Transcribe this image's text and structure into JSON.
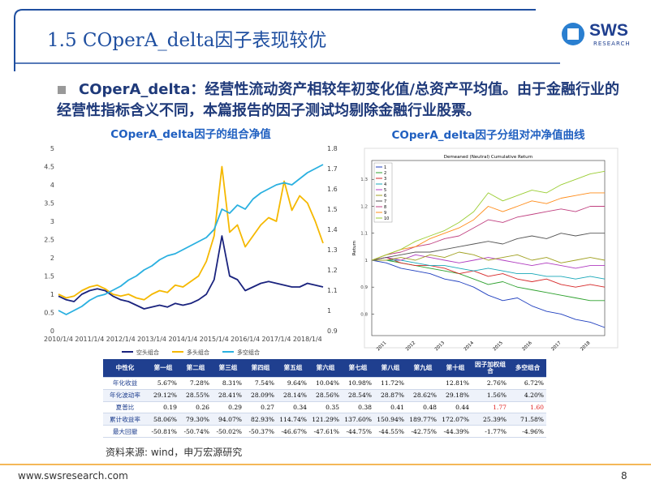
{
  "header": {
    "title": "1.5 COperA_delta因子表现较优",
    "logo": "SWS",
    "logo_sub": "RESEARCH"
  },
  "bullet": "COperA_delta：经营性流动资产相较年初变化值/总资产平均值。由于金融行业的经营性指标含义不同，本篇报告的因子测试均剔除金融行业股票。",
  "chart_data": [
    {
      "type": "line",
      "title": "COperA_delta因子的组合净值",
      "categories": [
        "2010/1/4",
        null,
        null,
        null,
        "2011/1/4",
        null,
        null,
        null,
        "2012/1/4",
        null,
        null,
        null,
        "2013/1/4",
        null,
        null,
        null,
        "2014/1/4",
        null,
        null,
        null,
        "2015/1/4",
        null,
        null,
        null,
        "2016/1/4",
        null,
        null,
        null,
        "2017/1/4",
        null,
        null,
        null,
        "2018/1/4",
        null,
        null
      ],
      "series": [
        {
          "name": "空头组合",
          "color": "#1a237e",
          "values": [
            0.95,
            0.85,
            0.8,
            1.0,
            1.1,
            1.15,
            1.1,
            0.95,
            0.85,
            0.8,
            0.7,
            0.6,
            0.65,
            0.7,
            0.65,
            0.75,
            0.7,
            0.75,
            0.85,
            1.0,
            1.4,
            2.6,
            1.5,
            1.4,
            1.1,
            1.2,
            1.3,
            1.35,
            1.3,
            1.25,
            1.2,
            1.2,
            1.3,
            1.25,
            1.2
          ]
        },
        {
          "name": "多头组合",
          "color": "#f5b800",
          "values": [
            1.0,
            0.9,
            0.95,
            1.1,
            1.2,
            1.25,
            1.15,
            1.0,
            0.95,
            1.0,
            0.9,
            0.85,
            1.0,
            1.1,
            1.05,
            1.25,
            1.2,
            1.35,
            1.5,
            1.9,
            2.6,
            4.5,
            2.7,
            2.9,
            2.3,
            2.6,
            2.9,
            3.1,
            3.0,
            4.1,
            3.3,
            3.7,
            3.5,
            3.0,
            2.4
          ]
        },
        {
          "name": "多空组合",
          "color": "#2ab0e0",
          "axis": "y2",
          "values": [
            1.0,
            0.98,
            1.0,
            1.02,
            1.05,
            1.07,
            1.08,
            1.1,
            1.12,
            1.15,
            1.17,
            1.2,
            1.22,
            1.25,
            1.27,
            1.28,
            1.3,
            1.32,
            1.34,
            1.36,
            1.4,
            1.5,
            1.48,
            1.52,
            1.5,
            1.55,
            1.58,
            1.6,
            1.62,
            1.63,
            1.62,
            1.65,
            1.68,
            1.7,
            1.72
          ]
        }
      ],
      "ylim": [
        0,
        5
      ],
      "yticks": [
        0,
        0.5,
        1,
        1.5,
        2,
        2.5,
        3,
        3.5,
        4,
        4.5,
        5
      ],
      "y2lim": [
        0.9,
        1.8
      ],
      "y2ticks": [
        0.9,
        1,
        1.1,
        1.2,
        1.3,
        1.4,
        1.5,
        1.6,
        1.7,
        1.8
      ],
      "grid": false,
      "legend": "bottom"
    },
    {
      "type": "line",
      "title": "COperA_delta因子分组对冲净值曲线",
      "subtitle": "Demeaned (Neutral) Cumulative Return",
      "y_label": "Return",
      "categories": [
        null,
        "2011",
        null,
        "2012",
        null,
        "2013",
        null,
        "2014",
        null,
        "2015",
        null,
        "2016",
        null,
        "2017",
        null,
        "2018",
        null
      ],
      "series": [
        {
          "name": "1",
          "color": "#1f3fbf",
          "values": [
            1,
            0.99,
            0.97,
            0.96,
            0.95,
            0.93,
            0.92,
            0.9,
            0.87,
            0.85,
            0.86,
            0.83,
            0.81,
            0.8,
            0.78,
            0.77,
            0.75
          ]
        },
        {
          "name": "2",
          "color": "#2ca02c",
          "values": [
            1,
            1.0,
            0.99,
            0.98,
            0.97,
            0.96,
            0.95,
            0.93,
            0.91,
            0.92,
            0.9,
            0.89,
            0.88,
            0.87,
            0.86,
            0.85,
            0.85
          ]
        },
        {
          "name": "3",
          "color": "#d62728",
          "values": [
            1,
            1.01,
            0.99,
            0.98,
            0.98,
            0.97,
            0.95,
            0.96,
            0.94,
            0.95,
            0.93,
            0.92,
            0.93,
            0.91,
            0.9,
            0.91,
            0.9
          ]
        },
        {
          "name": "4",
          "color": "#17a7b8",
          "values": [
            1,
            1.0,
            1.0,
            0.99,
            0.98,
            0.98,
            0.97,
            0.96,
            0.97,
            0.96,
            0.95,
            0.95,
            0.94,
            0.94,
            0.93,
            0.94,
            0.93
          ]
        },
        {
          "name": "5",
          "color": "#b03cc0",
          "values": [
            1,
            1.01,
            1.0,
            1.02,
            1.01,
            1.0,
            0.99,
            1.0,
            1.01,
            1.0,
            0.99,
            0.98,
            0.99,
            0.98,
            0.97,
            0.98,
            0.98
          ]
        },
        {
          "name": "6",
          "color": "#a0a020",
          "values": [
            1,
            1.0,
            1.01,
            1.0,
            1.02,
            1.01,
            1.03,
            1.02,
            1.0,
            1.01,
            1.02,
            1.0,
            1.01,
            0.99,
            1.0,
            1.01,
            1.0
          ]
        },
        {
          "name": "7",
          "color": "#555555",
          "values": [
            1,
            1.01,
            1.02,
            1.03,
            1.03,
            1.04,
            1.05,
            1.06,
            1.07,
            1.06,
            1.08,
            1.09,
            1.08,
            1.1,
            1.09,
            1.1,
            1.1
          ]
        },
        {
          "name": "8",
          "color": "#c04080",
          "values": [
            1,
            1.02,
            1.03,
            1.05,
            1.06,
            1.08,
            1.09,
            1.12,
            1.15,
            1.14,
            1.16,
            1.17,
            1.18,
            1.19,
            1.18,
            1.2,
            1.2
          ]
        },
        {
          "name": "9",
          "color": "#ff8c1a",
          "values": [
            1,
            1.02,
            1.04,
            1.05,
            1.08,
            1.1,
            1.12,
            1.15,
            1.2,
            1.18,
            1.2,
            1.22,
            1.21,
            1.23,
            1.24,
            1.25,
            1.25
          ]
        },
        {
          "name": "10",
          "color": "#9acd32",
          "values": [
            1,
            1.02,
            1.04,
            1.07,
            1.09,
            1.11,
            1.14,
            1.18,
            1.25,
            1.22,
            1.24,
            1.26,
            1.25,
            1.28,
            1.3,
            1.32,
            1.33
          ]
        }
      ],
      "ylim": [
        0.72,
        1.37
      ],
      "yticks": [
        0.8,
        0.9,
        1,
        1.1,
        1.2,
        1.3
      ],
      "grid": false,
      "legend": "upper left"
    }
  ],
  "table": {
    "header": [
      "中性化",
      "第一组",
      "第二组",
      "第三组",
      "第四组",
      "第五组",
      "第六组",
      "第七组",
      "第八组",
      "第九组",
      "第十组",
      "因子加权组合",
      "多空组合"
    ],
    "rows": [
      {
        "label": "年化收益",
        "values": [
          "5.67%",
          "7.28%",
          "8.31%",
          "7.54%",
          "9.64%",
          "10.04%",
          "10.98%",
          "11.72%",
          null,
          "12.81%",
          "2.76%",
          "6.72%"
        ]
      },
      {
        "label": "年化波动率",
        "values": [
          "29.12%",
          "28.55%",
          "28.41%",
          "28.09%",
          "28.14%",
          "28.56%",
          "28.54%",
          "28.87%",
          "28.62%",
          "29.18%",
          "1.56%",
          "4.20%"
        ]
      },
      {
        "label": "夏普比",
        "values": [
          "0.19",
          "0.26",
          "0.29",
          "0.27",
          "0.34",
          "0.35",
          "0.38",
          "0.41",
          "0.48",
          "0.44",
          "1.77",
          "1.60"
        ]
      },
      {
        "label": "累计收益率",
        "values": [
          "58.06%",
          "79.30%",
          "94.07%",
          "82.93%",
          "114.74%",
          "121.29%",
          "137.60%",
          "150.94%",
          "189.77%",
          "172.07%",
          "25.39%",
          "71.58%"
        ]
      },
      {
        "label": "最大回撤",
        "values": [
          "-50.81%",
          "-50.74%",
          "-50.02%",
          "-50.37%",
          "-46.67%",
          "-47.61%",
          "-44.75%",
          "-44.55%",
          "-42.75%",
          "-44.39%",
          "-1.77%",
          "-4.96%"
        ]
      }
    ]
  },
  "source": "资料来源: wind，申万宏源研究",
  "footer": {
    "url": "www.swsresearch.com",
    "page": "8"
  }
}
